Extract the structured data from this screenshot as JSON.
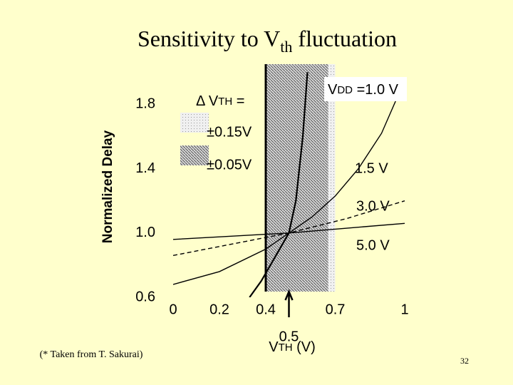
{
  "chart_data": {
    "type": "line",
    "title": [
      "Sensitivity to V",
      "th",
      " fluctuation"
    ],
    "ylabel": "Normalized Delay",
    "xlabel": [
      "V",
      "TH",
      " (V)"
    ],
    "legend_title": [
      "Δ V",
      "TH",
      " ="
    ],
    "vdd_label": [
      "V",
      "DD",
      " ="
    ],
    "bands": [
      {
        "label": "±0.15V",
        "range": [
          0.4,
          0.7
        ],
        "color": "#c8c8c8"
      },
      {
        "label": "±0.05V",
        "range": [
          0.4,
          0.67
        ],
        "color": "#808080"
      }
    ],
    "series": [
      {
        "name": "1.0 V",
        "color": "#000000",
        "x": [
          0.33,
          0.38,
          0.42,
          0.46,
          0.5,
          0.53,
          0.56,
          0.58
        ],
        "values": [
          0.6,
          0.7,
          0.8,
          0.9,
          1.0,
          1.2,
          1.6,
          2.0
        ]
      },
      {
        "name": "1.5 V",
        "color": "#000000",
        "x": [
          0,
          0.2,
          0.4,
          0.5,
          0.6,
          0.7,
          0.8,
          0.9,
          1.0
        ],
        "values": [
          0.68,
          0.76,
          0.9,
          1.0,
          1.1,
          1.23,
          1.4,
          1.62,
          1.95
        ]
      },
      {
        "name": "3.0 V",
        "color": "#000000",
        "x": [
          0,
          0.25,
          0.5,
          0.75,
          1.0
        ],
        "values": [
          0.86,
          0.93,
          1.0,
          1.09,
          1.2
        ]
      },
      {
        "name": "5.0 V",
        "color": "#000000",
        "x": [
          0,
          0.25,
          0.5,
          0.75,
          1.0
        ],
        "values": [
          0.96,
          0.98,
          1.0,
          1.03,
          1.06
        ]
      }
    ],
    "xlim": [
      0,
      1
    ],
    "ylim": [
      0.6,
      2.05
    ],
    "xticks": [
      0,
      0.2,
      0.4,
      0.5,
      0.7,
      1
    ],
    "yticks": [
      0.6,
      {
        "value": 1,
        "label": "1.0"
      },
      1.4,
      1.8
    ],
    "note": "(* Taken from T. Sakurai)",
    "page_number": "32"
  }
}
